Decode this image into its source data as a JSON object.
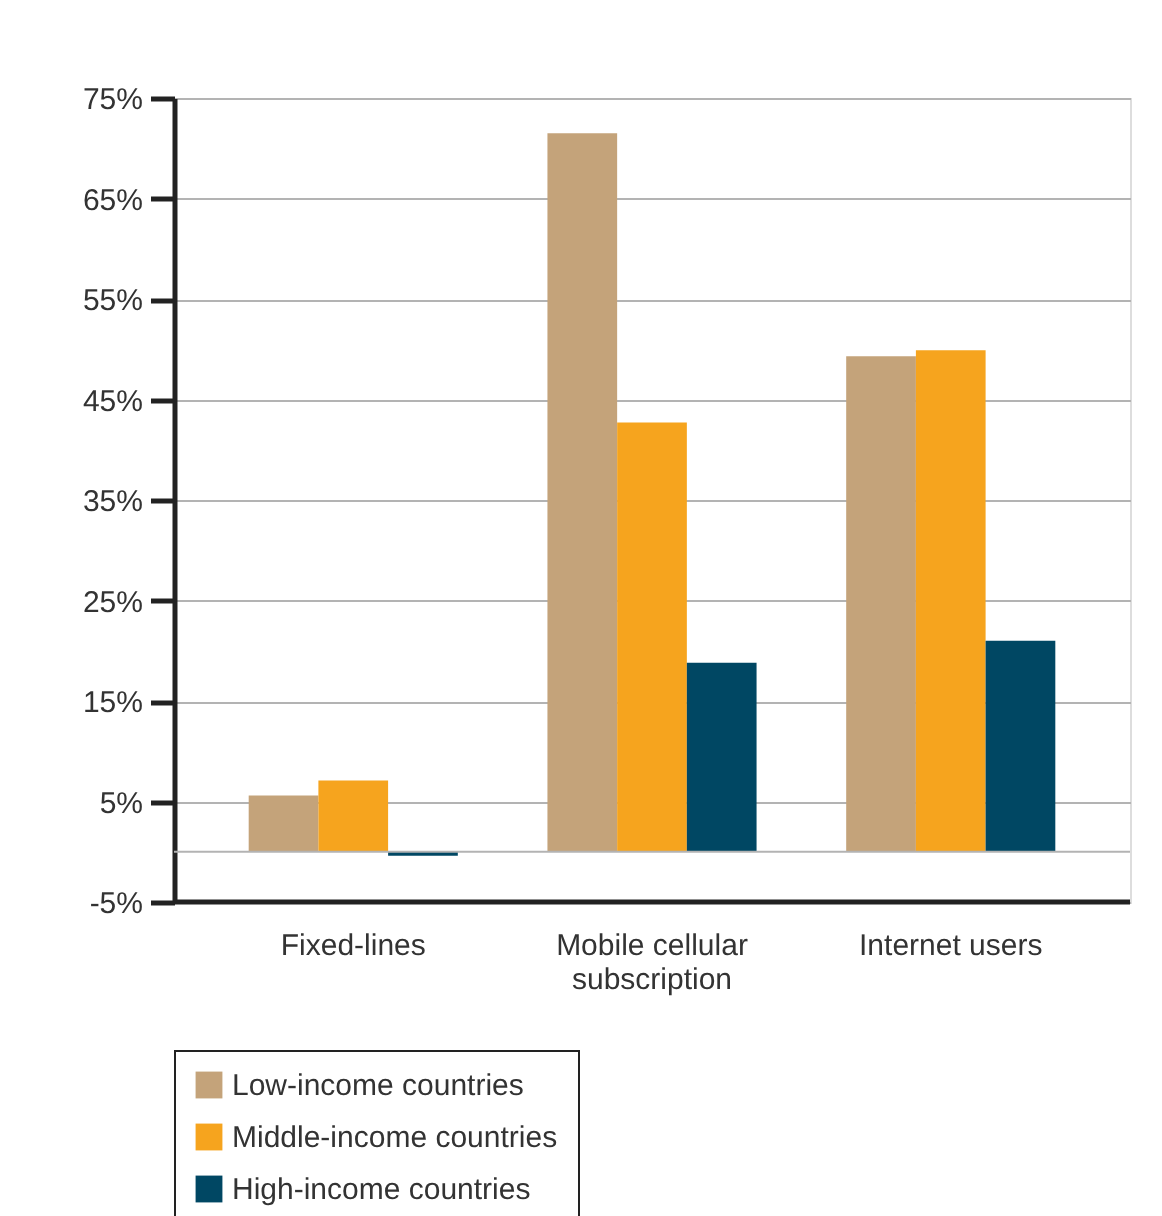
{
  "chart_data": {
    "type": "bar",
    "categories": [
      "Fixed-lines",
      "Mobile cellular\nsubscription",
      "Internet users"
    ],
    "series": [
      {
        "name": "Low-income countries",
        "color": "#c4a37a",
        "values": [
          5.6,
          71.5,
          49.3
        ]
      },
      {
        "name": "Middle-income countries",
        "color": "#f6a41e",
        "values": [
          7.1,
          42.7,
          49.9
        ]
      },
      {
        "name": "High-income countries",
        "color": "#004763",
        "values": [
          -0.4,
          18.8,
          21.0
        ]
      }
    ],
    "ylim": [
      -5,
      75
    ],
    "yticks": [
      {
        "value": -5,
        "label": "-5%"
      },
      {
        "value": 5,
        "label": "5%"
      },
      {
        "value": 15,
        "label": "15%"
      },
      {
        "value": 25,
        "label": "25%"
      },
      {
        "value": 35,
        "label": "35%"
      },
      {
        "value": 45,
        "label": "45%"
      },
      {
        "value": 55,
        "label": "55%"
      },
      {
        "value": 65,
        "label": "65%"
      },
      {
        "value": 75,
        "label": "75%"
      }
    ],
    "ref_lines": [
      {
        "axis": "y",
        "value": 0,
        "color": "#b3b3b3"
      }
    ],
    "grid": "y",
    "legend": "bottom"
  }
}
